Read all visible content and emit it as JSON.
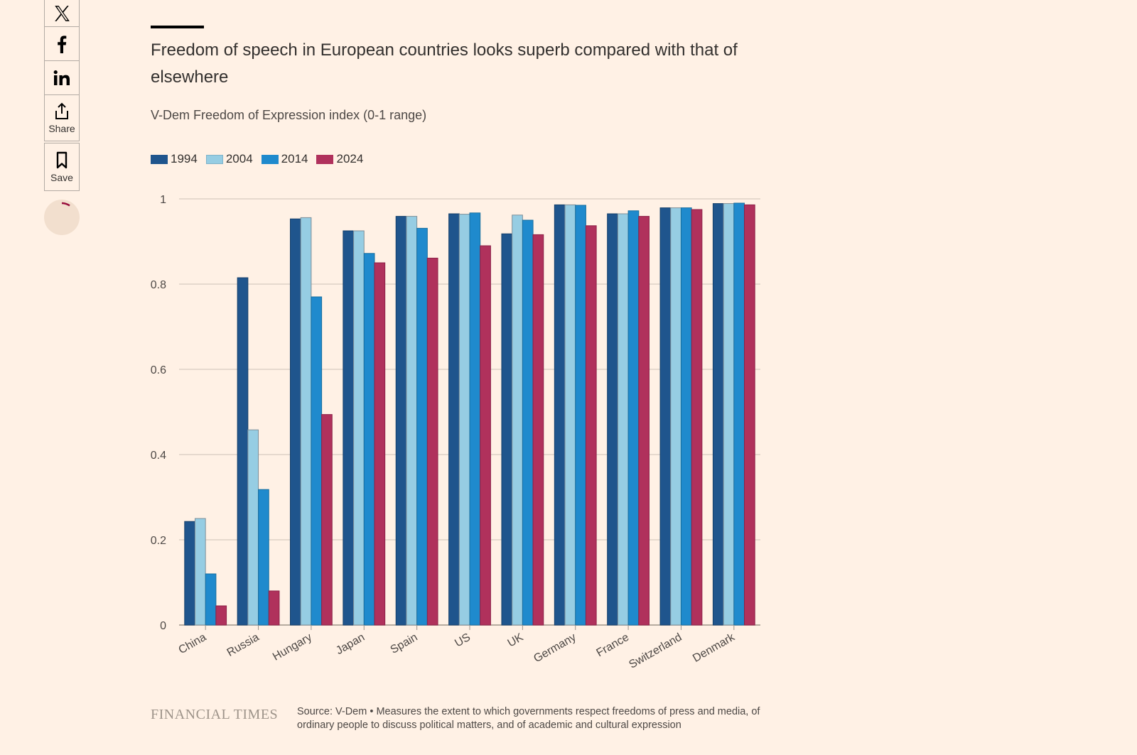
{
  "share": {
    "x_label": "X",
    "facebook_label": "f",
    "linkedin_label": "in",
    "share_label": "Share",
    "save_label": "Save"
  },
  "colors": {
    "background": "#FFF1E5",
    "s1994": "#1F558D",
    "s2004": "#96CDE3",
    "s2014": "#1F8ACD",
    "s2024": "#B0315C",
    "grid": "#CCC1B7",
    "axis": "#9E948A"
  },
  "chart_data": {
    "type": "bar",
    "title": "Freedom of speech in European countries looks superb compared with that of elsewhere",
    "subtitle": "V-Dem Freedom of Expression index (0-1 range)",
    "xlabel": "",
    "ylabel": "",
    "ylim": [
      0,
      1
    ],
    "yticks": [
      0,
      0.2,
      0.4,
      0.6,
      0.8,
      1
    ],
    "ytick_labels": [
      "0",
      "0.2",
      "0.4",
      "0.6",
      "0.8",
      "1"
    ],
    "grid": true,
    "legend_position": "top-left",
    "categories": [
      "China",
      "Russia",
      "Hungary",
      "Japan",
      "Spain",
      "US",
      "UK",
      "Germany",
      "France",
      "Switzerland",
      "Denmark"
    ],
    "series": [
      {
        "name": "1994",
        "values": [
          0.243,
          0.815,
          0.953,
          0.925,
          0.959,
          0.965,
          0.918,
          0.986,
          0.965,
          0.979,
          0.989
        ]
      },
      {
        "name": "2004",
        "values": [
          0.25,
          0.458,
          0.956,
          0.925,
          0.959,
          0.964,
          0.962,
          0.986,
          0.965,
          0.979,
          0.989
        ]
      },
      {
        "name": "2014",
        "values": [
          0.12,
          0.318,
          0.77,
          0.872,
          0.931,
          0.967,
          0.95,
          0.985,
          0.972,
          0.979,
          0.99
        ]
      },
      {
        "name": "2024",
        "values": [
          0.045,
          0.08,
          0.494,
          0.85,
          0.861,
          0.89,
          0.916,
          0.937,
          0.959,
          0.975,
          0.986
        ]
      }
    ]
  },
  "footer": {
    "logo": "FINANCIAL TIMES",
    "source": "Source: V-Dem • Measures the extent to which governments respect freedoms of press and media, of ordinary people to discuss political matters, and of academic and cultural expression"
  }
}
